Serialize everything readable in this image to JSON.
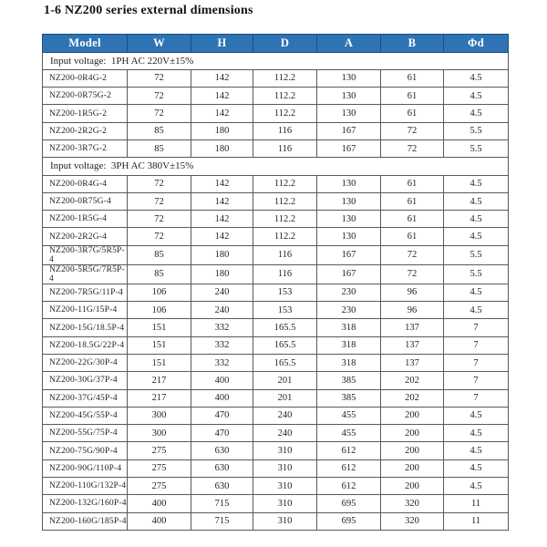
{
  "page": {
    "title": "1-6 NZ200 series external dimensions"
  },
  "colors": {
    "header_bg": "#2e74b5",
    "header_text": "#ffffff",
    "header_border": "#1b4f7e",
    "body_border": "#5a5a5a"
  },
  "table": {
    "headers": [
      "Model",
      "W",
      "H",
      "D",
      "A",
      "B",
      "Φd"
    ],
    "header_keys": [
      "model",
      "w",
      "h",
      "d",
      "a",
      "b",
      "phi-d"
    ],
    "sections": [
      {
        "label": "Input voltage:  1PH AC 220V±15%",
        "rows": [
          {
            "model": "NZ200-0R4G-2",
            "values": [
              "72",
              "142",
              "112.2",
              "130",
              "61",
              "4.5"
            ]
          },
          {
            "model": "NZ200-0R75G-2",
            "values": [
              "72",
              "142",
              "112.2",
              "130",
              "61",
              "4.5"
            ]
          },
          {
            "model": "NZ200-1R5G-2",
            "values": [
              "72",
              "142",
              "112.2",
              "130",
              "61",
              "4.5"
            ]
          },
          {
            "model": "NZ200-2R2G-2",
            "values": [
              "85",
              "180",
              "116",
              "167",
              "72",
              "5.5"
            ]
          },
          {
            "model": "NZ200-3R7G-2",
            "values": [
              "85",
              "180",
              "116",
              "167",
              "72",
              "5.5"
            ]
          }
        ]
      },
      {
        "label": "Input voltage:  3PH AC 380V±15%",
        "rows": [
          {
            "model": "NZ200-0R4G-4",
            "values": [
              "72",
              "142",
              "112.2",
              "130",
              "61",
              "4.5"
            ]
          },
          {
            "model": "NZ200-0R75G-4",
            "values": [
              "72",
              "142",
              "112.2",
              "130",
              "61",
              "4.5"
            ]
          },
          {
            "model": "NZ200-1R5G-4",
            "values": [
              "72",
              "142",
              "112.2",
              "130",
              "61",
              "4.5"
            ]
          },
          {
            "model": "NZ200-2R2G-4",
            "values": [
              "72",
              "142",
              "112.2",
              "130",
              "61",
              "4.5"
            ]
          },
          {
            "model": "NZ200-3R7G/5R5P-4",
            "values": [
              "85",
              "180",
              "116",
              "167",
              "72",
              "5.5"
            ]
          },
          {
            "model": "NZ200-5R5G/7R5P-4",
            "values": [
              "85",
              "180",
              "116",
              "167",
              "72",
              "5.5"
            ]
          },
          {
            "model": "NZ200-7R5G/11P-4",
            "values": [
              "106",
              "240",
              "153",
              "230",
              "96",
              "4.5"
            ]
          },
          {
            "model": "NZ200-11G/15P-4",
            "values": [
              "106",
              "240",
              "153",
              "230",
              "96",
              "4.5"
            ]
          },
          {
            "model": "NZ200-15G/18.5P-4",
            "values": [
              "151",
              "332",
              "165.5",
              "318",
              "137",
              "7"
            ]
          },
          {
            "model": "NZ200-18.5G/22P-4",
            "values": [
              "151",
              "332",
              "165.5",
              "318",
              "137",
              "7"
            ]
          },
          {
            "model": "NZ200-22G/30P-4",
            "values": [
              "151",
              "332",
              "165.5",
              "318",
              "137",
              "7"
            ]
          },
          {
            "model": "NZ200-30G/37P-4",
            "values": [
              "217",
              "400",
              "201",
              "385",
              "202",
              "7"
            ]
          },
          {
            "model": "NZ200-37G/45P-4",
            "values": [
              "217",
              "400",
              "201",
              "385",
              "202",
              "7"
            ]
          },
          {
            "model": "NZ200-45G/55P-4",
            "values": [
              "300",
              "470",
              "240",
              "455",
              "200",
              "4.5"
            ]
          },
          {
            "model": "NZ200-55G/75P-4",
            "values": [
              "300",
              "470",
              "240",
              "455",
              "200",
              "4.5"
            ]
          },
          {
            "model": "NZ200-75G/90P-4",
            "values": [
              "275",
              "630",
              "310",
              "612",
              "200",
              "4.5"
            ]
          },
          {
            "model": "NZ200-90G/110P-4",
            "values": [
              "275",
              "630",
              "310",
              "612",
              "200",
              "4.5"
            ]
          },
          {
            "model": "NZ200-110G/132P-4",
            "values": [
              "275",
              "630",
              "310",
              "612",
              "200",
              "4.5"
            ]
          },
          {
            "model": "NZ200-132G/160P-4",
            "values": [
              "400",
              "715",
              "310",
              "695",
              "320",
              "11"
            ]
          },
          {
            "model": "NZ200-160G/185P-4",
            "values": [
              "400",
              "715",
              "310",
              "695",
              "320",
              "11"
            ]
          }
        ]
      }
    ]
  }
}
